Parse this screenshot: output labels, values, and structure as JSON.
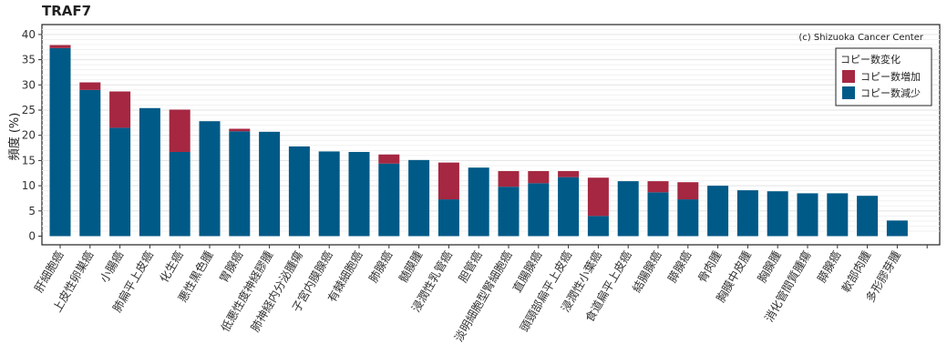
{
  "chart_data": {
    "type": "bar",
    "stacked": true,
    "title": "TRAF7",
    "credit": "(c) Shizuoka Cancer Center",
    "ylabel": "頻度 (%)",
    "xlabel": "",
    "ylim": [
      0,
      41
    ],
    "yticks": [
      0,
      5,
      10,
      15,
      20,
      25,
      30,
      35,
      40
    ],
    "grid": true,
    "legend": {
      "title": "コピー数変化",
      "position": "top-right"
    },
    "categories": [
      "肝細胞癌",
      "上皮性卵巣癌",
      "小腸癌",
      "肺扁平上皮癌",
      "化生癌",
      "悪性黒色腫",
      "胃腺癌",
      "低悪性度神経膠腫",
      "肺神経内分泌腫瘍",
      "子宮内膜腺癌",
      "有棘細胞癌",
      "肺腺癌",
      "髄膜腫",
      "浸潤性乳管癌",
      "胆管癌",
      "淡明細胞型腎細胞癌",
      "直腸腺癌",
      "頭頸部扁平上皮癌",
      "浸潤性小葉癌",
      "食道扁平上皮癌",
      "結腸腺癌",
      "膵腺癌",
      "骨肉腫",
      "胸膜中皮腫",
      "胸腺腫",
      "消化管間質腫瘍",
      "膵腺癌",
      "軟部肉腫",
      "多形膠芽腫"
    ],
    "series": [
      {
        "name": "コピー数減少",
        "color": "#005a87",
        "values": [
          37.3,
          29.0,
          21.5,
          25.4,
          16.7,
          22.8,
          20.8,
          20.7,
          17.8,
          16.8,
          16.7,
          14.4,
          15.1,
          7.3,
          13.6,
          9.8,
          10.5,
          11.7,
          4.0,
          10.9,
          8.7,
          7.3,
          10.0,
          9.1,
          8.9,
          8.5,
          8.5,
          8.0,
          3.1
        ]
      },
      {
        "name": "コピー数増加",
        "color": "#a52741",
        "values": [
          0.6,
          1.5,
          7.2,
          0,
          8.4,
          0,
          0.5,
          0,
          0,
          0,
          0,
          1.8,
          0,
          7.3,
          0,
          3.1,
          2.4,
          1.2,
          7.6,
          0,
          2.2,
          3.4,
          0,
          0,
          0,
          0,
          0,
          0,
          0
        ]
      }
    ]
  }
}
